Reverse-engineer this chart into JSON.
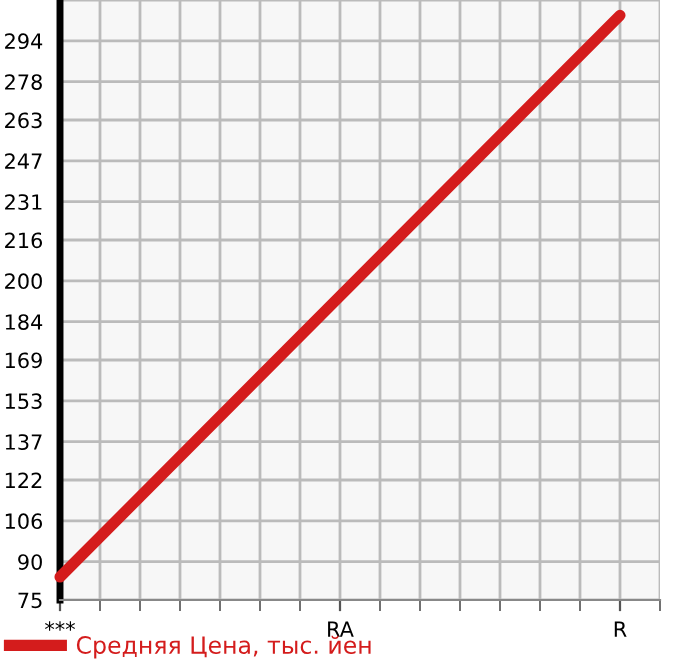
{
  "chart_data": {
    "type": "line",
    "categories": [
      "***",
      "RA",
      "R"
    ],
    "series": [
      {
        "name": "Средняя Цена, тыс. йен",
        "color": "#d41c1c",
        "values": [
          84,
          194,
          304
        ]
      }
    ],
    "ylim": [
      75,
      310
    ],
    "yticks": [
      75,
      90,
      106,
      122,
      137,
      153,
      169,
      184,
      200,
      216,
      231,
      247,
      263,
      278,
      294,
      {
        "value": 310,
        "label": null
      }
    ],
    "grid": true,
    "legend": "bottom",
    "marker": "none",
    "line_style": "solid"
  }
}
